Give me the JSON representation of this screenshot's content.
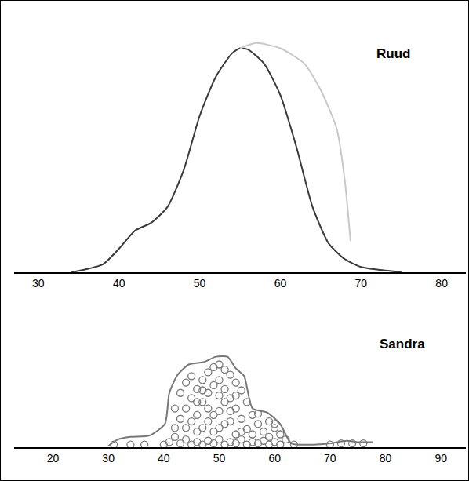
{
  "chart_data": [
    {
      "type": "line",
      "title": "Ruud",
      "xlim": [
        27,
        83
      ],
      "xticks": [
        30,
        40,
        50,
        60,
        70,
        80
      ],
      "ylim": [
        0,
        100
      ],
      "grid": false,
      "tick_labels": "x",
      "series": [
        {
          "type": "line",
          "color": "#3a3a3a",
          "x": [
            34,
            35,
            38,
            40,
            42,
            44,
            46,
            48,
            50,
            52,
            54,
            55,
            56,
            58,
            60,
            62,
            64,
            66,
            68,
            70,
            72,
            75
          ],
          "values": [
            0,
            0.5,
            3,
            9,
            16,
            19,
            25,
            39,
            60,
            75,
            84,
            86,
            85.5,
            80,
            68,
            48,
            25,
            11,
            5,
            2,
            1,
            0
          ]
        },
        {
          "type": "line",
          "color": "#c8c8c8",
          "x": [
            55,
            57,
            60,
            63,
            65,
            67,
            68,
            68.7
          ],
          "values": [
            86,
            88,
            86,
            80,
            70,
            55,
            35,
            12
          ]
        }
      ]
    },
    {
      "type": "scatter",
      "title": "Sandra",
      "xlim": [
        13,
        94.5
      ],
      "xticks": [
        20,
        30,
        40,
        50,
        60,
        70,
        80,
        90
      ],
      "ylim": [
        0,
        100
      ],
      "grid": false,
      "tick_labels": "x",
      "series": [
        {
          "type": "line",
          "color": "#777777",
          "x": [
            30,
            31.7,
            34,
            37.4,
            40.2,
            41,
            42.5,
            44.5,
            47.3,
            49.4,
            51.5,
            53,
            54.5,
            56,
            58.6,
            61,
            63,
            67,
            70,
            73,
            75,
            77.7
          ],
          "values": [
            1,
            6,
            8,
            9,
            18,
            42,
            56,
            64,
            66,
            70,
            70,
            61,
            55,
            30,
            27,
            18,
            3,
            2,
            3,
            5,
            4,
            4
          ]
        },
        {
          "type": "scatter",
          "marker": "circle-open",
          "color": "#7a7a7a",
          "x": [
            31,
            34,
            36.5,
            40,
            41,
            42,
            43,
            44,
            45,
            46,
            47,
            48,
            49,
            50,
            51,
            52,
            53,
            54,
            55,
            56,
            57,
            58,
            59,
            60,
            61,
            62,
            63.5,
            70,
            72,
            74,
            76,
            42,
            43,
            44,
            45,
            46,
            47,
            48,
            49,
            50,
            51,
            52,
            53,
            54,
            55,
            56,
            57,
            58,
            59,
            60,
            42,
            43,
            44,
            45,
            46,
            47,
            48,
            49,
            50,
            51,
            52,
            53,
            54,
            55,
            44,
            46,
            48,
            50,
            52,
            54,
            56,
            47,
            49,
            51,
            53,
            45,
            50,
            48,
            46,
            52,
            50,
            51,
            49,
            47,
            53,
            57,
            59,
            61,
            60
          ],
          "values": [
            2,
            2,
            2,
            2,
            4,
            8,
            3,
            6,
            2,
            4,
            2,
            5,
            3,
            6,
            2,
            4,
            3,
            6,
            2,
            4,
            3,
            5,
            2,
            4,
            2,
            6,
            2,
            2,
            3,
            3,
            3,
            15,
            22,
            30,
            38,
            45,
            52,
            58,
            62,
            64,
            60,
            56,
            50,
            44,
            35,
            25,
            18,
            12,
            20,
            15,
            30,
            42,
            50,
            55,
            25,
            35,
            42,
            48,
            52,
            45,
            38,
            30,
            22,
            14,
            15,
            12,
            20,
            28,
            20,
            12,
            10,
            15,
            12,
            18,
            10,
            20,
            40,
            30,
            35,
            28,
            15,
            35,
            25,
            44,
            40,
            26,
            8,
            10,
            18
          ]
        }
      ]
    }
  ]
}
